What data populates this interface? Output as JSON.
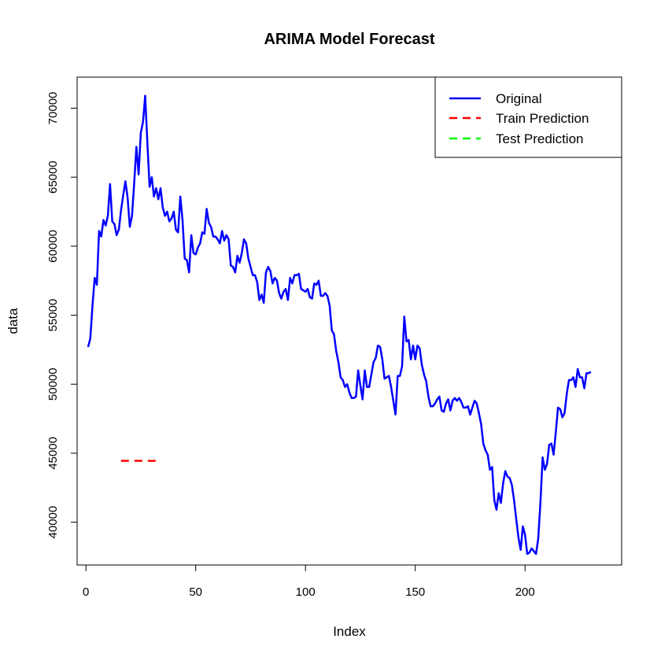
{
  "chart_data": {
    "type": "line",
    "title": "ARIMA Model Forecast",
    "xlabel": "Index",
    "ylabel": "data",
    "xlim": [
      -4,
      244
    ],
    "ylim": [
      36900,
      72250
    ],
    "xticks": [
      0,
      50,
      100,
      150,
      200
    ],
    "yticks": [
      40000,
      45000,
      50000,
      55000,
      60000,
      65000,
      70000
    ],
    "legend_position": "top-right",
    "series": [
      {
        "name": "Original",
        "color": "#0000ff",
        "style": "solid",
        "points": [
          [
            1,
            52700
          ],
          [
            2,
            53300
          ],
          [
            3,
            55700
          ],
          [
            4,
            57700
          ],
          [
            5,
            57200
          ],
          [
            6,
            61100
          ],
          [
            7,
            60700
          ],
          [
            8,
            61900
          ],
          [
            9,
            61500
          ],
          [
            10,
            62200
          ],
          [
            11,
            64500
          ],
          [
            12,
            61800
          ],
          [
            13,
            61600
          ],
          [
            14,
            60800
          ],
          [
            15,
            61200
          ],
          [
            16,
            62600
          ],
          [
            17,
            63700
          ],
          [
            18,
            64700
          ],
          [
            19,
            63500
          ],
          [
            20,
            61400
          ],
          [
            21,
            62200
          ],
          [
            22,
            64600
          ],
          [
            23,
            67200
          ],
          [
            24,
            65200
          ],
          [
            25,
            68200
          ],
          [
            26,
            69000
          ],
          [
            27,
            70900
          ],
          [
            28,
            67500
          ],
          [
            29,
            64300
          ],
          [
            30,
            65000
          ],
          [
            31,
            63600
          ],
          [
            32,
            64200
          ],
          [
            33,
            63400
          ],
          [
            34,
            64200
          ],
          [
            35,
            62800
          ],
          [
            36,
            62200
          ],
          [
            37,
            62500
          ],
          [
            38,
            61800
          ],
          [
            39,
            62000
          ],
          [
            40,
            62500
          ],
          [
            41,
            61200
          ],
          [
            42,
            61000
          ],
          [
            43,
            63600
          ],
          [
            44,
            61900
          ],
          [
            45,
            59100
          ],
          [
            46,
            59000
          ],
          [
            47,
            58100
          ],
          [
            48,
            60800
          ],
          [
            49,
            59500
          ],
          [
            50,
            59400
          ],
          [
            51,
            59900
          ],
          [
            52,
            60200
          ],
          [
            53,
            61000
          ],
          [
            54,
            60900
          ],
          [
            55,
            62700
          ],
          [
            56,
            61700
          ],
          [
            57,
            61400
          ],
          [
            58,
            60700
          ],
          [
            59,
            60700
          ],
          [
            60,
            60500
          ],
          [
            61,
            60200
          ],
          [
            62,
            61100
          ],
          [
            63,
            60400
          ],
          [
            64,
            60800
          ],
          [
            65,
            60500
          ],
          [
            66,
            58600
          ],
          [
            67,
            58500
          ],
          [
            68,
            58100
          ],
          [
            69,
            59300
          ],
          [
            70,
            58800
          ],
          [
            71,
            59500
          ],
          [
            72,
            60500
          ],
          [
            73,
            60200
          ],
          [
            74,
            59100
          ],
          [
            75,
            58500
          ],
          [
            76,
            57900
          ],
          [
            77,
            57900
          ],
          [
            78,
            57400
          ],
          [
            79,
            56100
          ],
          [
            80,
            56500
          ],
          [
            81,
            55900
          ],
          [
            82,
            58100
          ],
          [
            83,
            58500
          ],
          [
            84,
            58200
          ],
          [
            85,
            57300
          ],
          [
            86,
            57700
          ],
          [
            87,
            57500
          ],
          [
            88,
            56600
          ],
          [
            89,
            56200
          ],
          [
            90,
            56700
          ],
          [
            91,
            56900
          ],
          [
            92,
            56100
          ],
          [
            93,
            57700
          ],
          [
            94,
            57300
          ],
          [
            95,
            57900
          ],
          [
            96,
            57900
          ],
          [
            97,
            58000
          ],
          [
            98,
            56900
          ],
          [
            99,
            56800
          ],
          [
            100,
            56700
          ],
          [
            101,
            56900
          ],
          [
            102,
            56300
          ],
          [
            103,
            56200
          ],
          [
            104,
            57300
          ],
          [
            105,
            57200
          ],
          [
            106,
            57500
          ],
          [
            107,
            56400
          ],
          [
            108,
            56400
          ],
          [
            109,
            56600
          ],
          [
            110,
            56400
          ],
          [
            111,
            55700
          ],
          [
            112,
            53900
          ],
          [
            113,
            53600
          ],
          [
            114,
            52400
          ],
          [
            115,
            51600
          ],
          [
            116,
            50500
          ],
          [
            117,
            50300
          ],
          [
            118,
            49800
          ],
          [
            119,
            50000
          ],
          [
            120,
            49400
          ],
          [
            121,
            49000
          ],
          [
            122,
            49000
          ],
          [
            123,
            49100
          ],
          [
            124,
            51000
          ],
          [
            125,
            49900
          ],
          [
            126,
            48900
          ],
          [
            127,
            51000
          ],
          [
            128,
            49800
          ],
          [
            129,
            49800
          ],
          [
            130,
            50700
          ],
          [
            131,
            51600
          ],
          [
            132,
            51900
          ],
          [
            133,
            52800
          ],
          [
            134,
            52700
          ],
          [
            135,
            51800
          ],
          [
            136,
            50400
          ],
          [
            137,
            50500
          ],
          [
            138,
            50600
          ],
          [
            139,
            49800
          ],
          [
            140,
            48800
          ],
          [
            141,
            47800
          ],
          [
            142,
            50600
          ],
          [
            143,
            50600
          ],
          [
            144,
            51300
          ],
          [
            145,
            54900
          ],
          [
            146,
            53100
          ],
          [
            147,
            53200
          ],
          [
            148,
            51800
          ],
          [
            149,
            52800
          ],
          [
            150,
            51800
          ],
          [
            151,
            52800
          ],
          [
            152,
            52600
          ],
          [
            153,
            51400
          ],
          [
            154,
            50700
          ],
          [
            155,
            50200
          ],
          [
            156,
            49100
          ],
          [
            157,
            48400
          ],
          [
            158,
            48400
          ],
          [
            159,
            48600
          ],
          [
            160,
            48900
          ],
          [
            161,
            49100
          ],
          [
            162,
            48100
          ],
          [
            163,
            48000
          ],
          [
            164,
            48600
          ],
          [
            165,
            48900
          ],
          [
            166,
            48100
          ],
          [
            167,
            48800
          ],
          [
            168,
            49000
          ],
          [
            169,
            48800
          ],
          [
            170,
            49000
          ],
          [
            171,
            48700
          ],
          [
            172,
            48300
          ],
          [
            173,
            48300
          ],
          [
            174,
            48400
          ],
          [
            175,
            47800
          ],
          [
            176,
            48300
          ],
          [
            177,
            48800
          ],
          [
            178,
            48600
          ],
          [
            179,
            47900
          ],
          [
            180,
            47100
          ],
          [
            181,
            45700
          ],
          [
            182,
            45200
          ],
          [
            183,
            44900
          ],
          [
            184,
            43800
          ],
          [
            185,
            44000
          ],
          [
            186,
            41600
          ],
          [
            187,
            40900
          ],
          [
            188,
            42100
          ],
          [
            189,
            41400
          ],
          [
            190,
            42800
          ],
          [
            191,
            43700
          ],
          [
            192,
            43300
          ],
          [
            193,
            43200
          ],
          [
            194,
            42700
          ],
          [
            195,
            41600
          ],
          [
            196,
            40200
          ],
          [
            197,
            38900
          ],
          [
            198,
            38000
          ],
          [
            199,
            39700
          ],
          [
            200,
            39100
          ],
          [
            201,
            37700
          ],
          [
            202,
            37800
          ],
          [
            203,
            38100
          ],
          [
            204,
            37900
          ],
          [
            205,
            37700
          ],
          [
            206,
            38800
          ],
          [
            207,
            41400
          ],
          [
            208,
            44700
          ],
          [
            209,
            43800
          ],
          [
            210,
            44200
          ],
          [
            211,
            45600
          ],
          [
            212,
            45700
          ],
          [
            213,
            44900
          ],
          [
            214,
            46500
          ],
          [
            215,
            48300
          ],
          [
            216,
            48200
          ],
          [
            217,
            47600
          ],
          [
            218,
            47900
          ],
          [
            219,
            49300
          ],
          [
            220,
            50300
          ],
          [
            221,
            50300
          ],
          [
            222,
            50500
          ],
          [
            223,
            49800
          ],
          [
            224,
            51100
          ],
          [
            225,
            50500
          ],
          [
            226,
            50500
          ],
          [
            227,
            49700
          ],
          [
            228,
            50800
          ],
          [
            229,
            50800
          ],
          [
            230,
            50900
          ]
        ]
      },
      {
        "name": "Train Prediction",
        "color": "#ff0000",
        "style": "dashed",
        "points": [
          [
            16,
            44450
          ],
          [
            32,
            44450
          ]
        ]
      },
      {
        "name": "Test Prediction",
        "color": "#00ff00",
        "style": "dashed",
        "points": []
      }
    ]
  }
}
